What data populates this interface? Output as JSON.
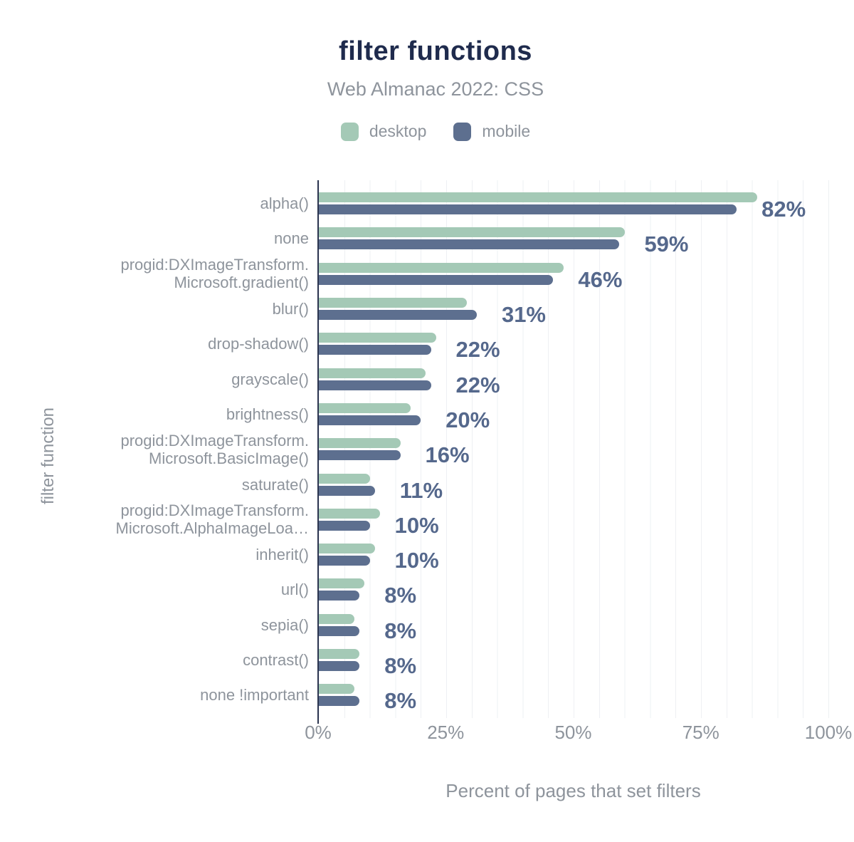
{
  "header": {
    "title": "filter functions",
    "subtitle": "Web Almanac 2022: CSS"
  },
  "legend": [
    {
      "label": "desktop",
      "color": "#a4c9b6"
    },
    {
      "label": "mobile",
      "color": "#5d6f8f"
    }
  ],
  "colors": {
    "title": "#1f2b4d",
    "muted_text": "#8e949c",
    "value_label": "#55688c",
    "axis_line": "#2c3550",
    "gridline": "#eef0f3",
    "desktop_bar": "#a4c9b6",
    "mobile_bar": "#5d6f8f"
  },
  "chart_data": {
    "type": "bar",
    "orientation": "horizontal",
    "title": "filter functions",
    "subtitle": "Web Almanac 2022: CSS",
    "xlabel": "Percent of pages that set filters",
    "ylabel": "filter function",
    "xlim": [
      0,
      100
    ],
    "x_ticks": [
      {
        "value": 0,
        "label": "0%"
      },
      {
        "value": 25,
        "label": "25%"
      },
      {
        "value": 50,
        "label": "50%"
      },
      {
        "value": 75,
        "label": "75%"
      },
      {
        "value": 100,
        "label": "100%"
      }
    ],
    "grid": "vertical minor gridlines every 5%",
    "legend_position": "top",
    "categories": [
      [
        "alpha()"
      ],
      [
        "none"
      ],
      [
        "progid:DXImageTransform.",
        "Microsoft.gradient()"
      ],
      [
        "blur()"
      ],
      [
        "drop-shadow()"
      ],
      [
        "grayscale()"
      ],
      [
        "brightness()"
      ],
      [
        "progid:DXImageTransform.",
        "Microsoft.BasicImage()"
      ],
      [
        "saturate()"
      ],
      [
        "progid:DXImageTransform.",
        "Microsoft.AlphaImageLoa…"
      ],
      [
        "inherit()"
      ],
      [
        "url()"
      ],
      [
        "sepia()"
      ],
      [
        "contrast()"
      ],
      [
        "none !important"
      ]
    ],
    "series": [
      {
        "name": "desktop",
        "color": "#a4c9b6",
        "values": [
          86,
          60,
          48,
          29,
          23,
          21,
          18,
          16,
          10,
          12,
          11,
          9,
          7,
          8,
          7
        ]
      },
      {
        "name": "mobile",
        "color": "#5d6f8f",
        "values": [
          82,
          59,
          46,
          31,
          22,
          22,
          20,
          16,
          11,
          10,
          10,
          8,
          8,
          8,
          8
        ]
      }
    ],
    "value_labels": [
      "82%",
      "59%",
      "46%",
      "31%",
      "22%",
      "22%",
      "20%",
      "16%",
      "11%",
      "10%",
      "10%",
      "8%",
      "8%",
      "8%",
      "8%"
    ]
  }
}
